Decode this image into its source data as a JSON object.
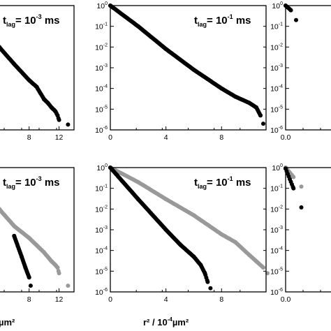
{
  "figure": {
    "xlabel": {
      "text": "r²  / 10",
      "exponent": "-4",
      "unit": "µm²"
    },
    "xlabel_partial": "µm²"
  },
  "chart_data": [
    {
      "id": "top-left",
      "type": "scatter",
      "yscale": "log",
      "annotation": {
        "prefix": "t",
        "sub": "lag",
        "mid": "= 10",
        "exp": "-3",
        "suffix": " ms"
      },
      "xlim": [
        0,
        14
      ],
      "ylim": [
        1e-06,
        1
      ],
      "xticks": [
        8,
        12
      ],
      "xtick_labels": [
        "8",
        "12"
      ],
      "yticks": [],
      "ytick_labels": [],
      "series": [
        {
          "color": "#000000",
          "points": [
            [
              4,
              0.01
            ],
            [
              6,
              0.0015
            ],
            [
              8,
              0.00025
            ],
            [
              9,
              0.00012
            ],
            [
              10,
              3e-05
            ],
            [
              10.5,
              2e-05
            ],
            [
              11,
              1.2e-05
            ],
            [
              11.5,
              8e-06
            ],
            [
              11.8,
              5e-06
            ],
            [
              12,
              3e-06
            ],
            [
              13.2,
              1.8e-06
            ]
          ],
          "step": 0.12
        }
      ]
    },
    {
      "id": "top-middle",
      "type": "scatter",
      "yscale": "log",
      "annotation": {
        "prefix": "t",
        "sub": "lag",
        "mid": "= 10",
        "exp": "-1",
        "suffix": " ms"
      },
      "xlim": [
        0,
        11.2
      ],
      "ylim": [
        1e-06,
        1
      ],
      "xticks": [
        0,
        4,
        8
      ],
      "xtick_labels": [
        "0",
        "4",
        "8"
      ],
      "yticks": [
        1,
        0.1,
        0.01,
        0.001,
        0.0001,
        1e-05,
        1e-06
      ],
      "ytick_labels": [
        {
          "b": "10",
          "e": "0"
        },
        {
          "b": "10",
          "e": "-1"
        },
        {
          "b": "10",
          "e": "-2"
        },
        {
          "b": "10",
          "e": "-3"
        },
        {
          "b": "10",
          "e": "-4"
        },
        {
          "b": "10",
          "e": "-5"
        },
        {
          "b": "10",
          "e": "-6"
        }
      ],
      "series": [
        {
          "color": "#000000",
          "points": [
            [
              0,
              1
            ],
            [
              2,
              0.1
            ],
            [
              4,
              0.008
            ],
            [
              6,
              0.0008
            ],
            [
              8,
              0.0001
            ],
            [
              9,
              4e-05
            ],
            [
              10,
              2e-05
            ],
            [
              10.5,
              1.2e-05
            ],
            [
              10.8,
              5e-06
            ],
            [
              11,
              2e-06
            ]
          ],
          "step": 0.06
        }
      ]
    },
    {
      "id": "top-right",
      "type": "scatter",
      "yscale": "log",
      "xlim": [
        0,
        2
      ],
      "ylim": [
        1e-06,
        1
      ],
      "xticks": [
        0
      ],
      "xtick_labels": [
        "0.0"
      ],
      "yticks": [
        1,
        0.1,
        0.01,
        0.001,
        0.0001,
        1e-05,
        1e-06
      ],
      "ytick_labels": [
        {
          "b": "10",
          "e": "0"
        },
        {
          "b": "10",
          "e": "-1"
        },
        {
          "b": "10",
          "e": "-2"
        },
        {
          "b": "10",
          "e": "-3"
        },
        {
          "b": "10",
          "e": "-4"
        },
        {
          "b": "10",
          "e": "-5"
        },
        {
          "b": "10",
          "e": "-6"
        }
      ],
      "series": [
        {
          "color": "#000000",
          "points": [
            [
              0,
              1
            ],
            [
              0.1,
              0.6
            ],
            [
              0.2,
              0.2
            ]
          ],
          "step": 0.02
        }
      ]
    },
    {
      "id": "bottom-left",
      "type": "scatter",
      "yscale": "log",
      "annotation": {
        "prefix": "t",
        "sub": "lag",
        "mid": "= 10",
        "exp": "-3",
        "suffix": " ms"
      },
      "xlim": [
        0,
        14
      ],
      "ylim": [
        1e-06,
        1
      ],
      "xticks": [
        8,
        12
      ],
      "xtick_labels": [
        "8",
        "12"
      ],
      "yticks": [],
      "ytick_labels": [],
      "series": [
        {
          "color": "#999999",
          "points": [
            [
              4,
              0.01
            ],
            [
              6,
              0.0015
            ],
            [
              8,
              0.0004
            ],
            [
              10,
              8e-05
            ],
            [
              11,
              3e-05
            ],
            [
              11.5,
              2e-05
            ],
            [
              11.8,
              1.5e-05
            ],
            [
              12,
              8e-06
            ],
            [
              13.2,
              2e-06
            ]
          ],
          "step": 0.12
        },
        {
          "color": "#000000",
          "points": [
            [
              6,
              0.0005
            ],
            [
              7,
              5e-05
            ],
            [
              7.5,
              1.5e-05
            ],
            [
              8,
              5e-06
            ],
            [
              8.2,
              2e-06
            ]
          ],
          "step": 0.08
        }
      ]
    },
    {
      "id": "bottom-middle",
      "type": "scatter",
      "yscale": "log",
      "annotation": {
        "prefix": "t",
        "sub": "lag",
        "mid": "= 10",
        "exp": "-1",
        "suffix": " ms"
      },
      "xlim": [
        0,
        11.2
      ],
      "ylim": [
        1e-06,
        1
      ],
      "xticks": [
        0,
        4,
        8
      ],
      "xtick_labels": [
        "0",
        "4",
        "8"
      ],
      "yticks": [
        1,
        0.1,
        0.01,
        0.001,
        0.0001,
        1e-05,
        1e-06
      ],
      "ytick_labels": [
        {
          "b": "10",
          "e": "0"
        },
        {
          "b": "10",
          "e": "-1"
        },
        {
          "b": "10",
          "e": "-2"
        },
        {
          "b": "10",
          "e": "-3"
        },
        {
          "b": "10",
          "e": "-4"
        },
        {
          "b": "10",
          "e": "-5"
        },
        {
          "b": "10",
          "e": "-6"
        }
      ],
      "series": [
        {
          "color": "#999999",
          "points": [
            [
              0,
              1
            ],
            [
              2,
              0.2
            ],
            [
              4,
              0.03
            ],
            [
              6,
              0.005
            ],
            [
              8,
              0.0006
            ],
            [
              9,
              0.00025
            ],
            [
              10,
              6e-05
            ],
            [
              10.5,
              3e-05
            ],
            [
              11,
              1.5e-05
            ],
            [
              11.3,
              8e-06
            ]
          ],
          "step": 0.1
        },
        {
          "color": "#000000",
          "points": [
            [
              0,
              1
            ],
            [
              2,
              0.03
            ],
            [
              4,
              0.001
            ],
            [
              5,
              0.0002
            ],
            [
              6,
              5e-05
            ],
            [
              6.5,
              2e-05
            ],
            [
              6.8,
              8e-06
            ],
            [
              7,
              3e-06
            ],
            [
              7.2,
              1.5e-06
            ]
          ],
          "step": 0.06
        }
      ]
    },
    {
      "id": "bottom-right",
      "type": "scatter",
      "yscale": "log",
      "xlim": [
        0,
        2
      ],
      "ylim": [
        1e-06,
        1
      ],
      "xticks": [
        0
      ],
      "xtick_labels": [
        "0.0"
      ],
      "yticks": [
        1,
        0.1,
        0.01,
        0.001,
        0.0001,
        1e-05,
        1e-06
      ],
      "ytick_labels": [
        {
          "b": "10",
          "e": "0"
        },
        {
          "b": "10",
          "e": "-1"
        },
        {
          "b": "10",
          "e": "-2"
        },
        {
          "b": "10",
          "e": "-3"
        },
        {
          "b": "10",
          "e": "-4"
        },
        {
          "b": "10",
          "e": "-5"
        },
        {
          "b": "10",
          "e": "-6"
        }
      ],
      "series": [
        {
          "color": "#999999",
          "points": [
            [
              0,
              1
            ],
            [
              0.15,
              0.35
            ],
            [
              0.3,
              0.12
            ]
          ],
          "step": 0.02
        },
        {
          "color": "#000000",
          "points": [
            [
              0,
              0.9
            ],
            [
              0.15,
              0.1
            ],
            [
              0.3,
              0.012
            ]
          ],
          "step": 0.02
        }
      ]
    }
  ]
}
